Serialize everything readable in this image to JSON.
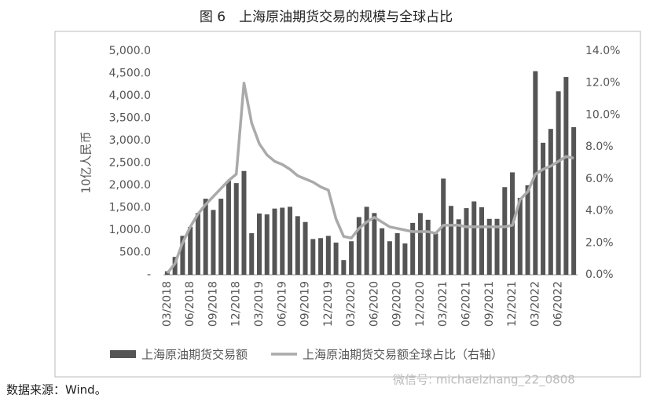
{
  "chart_data": {
    "type": "bar-line",
    "title": "图 6　上海原油期货交易的规模与全球占比",
    "y_label": "10亿人民币",
    "source": "数据来源：Wind。",
    "watermark": "微信号: michaelzhang_22_0808",
    "categories": [
      "03/2018",
      null,
      null,
      "06/2018",
      null,
      null,
      "09/2018",
      null,
      null,
      "12/2018",
      null,
      null,
      "03/2019",
      null,
      null,
      "06/2019",
      null,
      null,
      "09/2019",
      null,
      null,
      "12/2019",
      null,
      null,
      "03/2020",
      null,
      null,
      "06/2020",
      null,
      null,
      "09/2020",
      null,
      null,
      "12/2020",
      null,
      null,
      "03/2021",
      null,
      null,
      "06/2021",
      null,
      null,
      "09/2021",
      null,
      null,
      "12/2021",
      null,
      null,
      "03/2022",
      null,
      null,
      "06/2022",
      null,
      null
    ],
    "series": [
      {
        "name": "上海原油期货交易额",
        "color": "#555555",
        "kind": "bar",
        "values": [
          80,
          400,
          870,
          1070,
          1380,
          1700,
          1450,
          1700,
          2100,
          2050,
          2320,
          930,
          1370,
          1350,
          1480,
          1500,
          1520,
          1310,
          1180,
          800,
          820,
          870,
          720,
          330,
          750,
          1290,
          1520,
          1380,
          1040,
          750,
          930,
          700,
          1160,
          1380,
          1230,
          920,
          2150,
          1540,
          1240,
          1490,
          1640,
          1510,
          1250,
          1250,
          1960,
          2290,
          1720,
          2000,
          4550,
          2950,
          3260,
          4100,
          4420,
          3300
        ]
      },
      {
        "name": "上海原油期货交易额全球占比（右轴）",
        "color": "#aaaaaa",
        "kind": "line",
        "axis": "y2",
        "values": [
          0.1,
          0.7,
          2.0,
          3.0,
          3.8,
          4.4,
          4.9,
          5.4,
          5.9,
          6.3,
          12.0,
          9.5,
          8.2,
          7.5,
          7.1,
          6.9,
          6.6,
          6.2,
          6.0,
          5.8,
          5.5,
          5.3,
          3.5,
          2.4,
          2.3,
          2.9,
          3.3,
          3.6,
          3.3,
          3.0,
          2.9,
          2.8,
          2.7,
          2.7,
          2.7,
          2.6,
          3.1,
          3.1,
          3.1,
          3.0,
          3.0,
          3.0,
          3.0,
          3.0,
          3.0,
          3.1,
          4.7,
          5.2,
          6.3,
          6.6,
          6.8,
          7.1,
          7.4,
          7.3
        ]
      }
    ],
    "ylim": [
      0,
      5000
    ],
    "yticks": [
      {
        "value": 0,
        "label": "-"
      },
      {
        "value": 500,
        "label": "500.0"
      },
      {
        "value": 1000,
        "label": "1,000.0"
      },
      {
        "value": 1500,
        "label": "1,500.0"
      },
      {
        "value": 2000,
        "label": "2,000.0"
      },
      {
        "value": 2500,
        "label": "2,500.0"
      },
      {
        "value": 3000,
        "label": "3,000.0"
      },
      {
        "value": 3500,
        "label": "3,500.0"
      },
      {
        "value": 4000,
        "label": "4,000.0"
      },
      {
        "value": 4500,
        "label": "4,500.0"
      },
      {
        "value": 5000,
        "label": "5,000.0"
      }
    ],
    "y2lim": [
      0,
      14
    ],
    "y2ticks": [
      {
        "value": 0,
        "label": "0.0%"
      },
      {
        "value": 2,
        "label": "2.0%"
      },
      {
        "value": 4,
        "label": "4.0%"
      },
      {
        "value": 6,
        "label": "6.0%"
      },
      {
        "value": 8,
        "label": "8.0%"
      },
      {
        "value": 10,
        "label": "10.0%"
      },
      {
        "value": 12,
        "label": "12.0%"
      },
      {
        "value": 14,
        "label": "14.0%"
      }
    ],
    "grid": false,
    "legend": "bottom"
  }
}
